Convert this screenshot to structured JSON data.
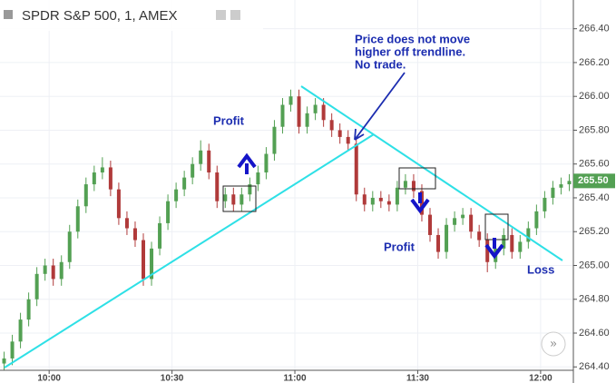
{
  "header": {
    "title": "SPDR S&P 500, 1, AMEX"
  },
  "chart_data": {
    "type": "candlestick",
    "x": [
      "9:49",
      "9:51",
      "9:53",
      "9:55",
      "9:57",
      "9:59",
      "10:01",
      "10:03",
      "10:05",
      "10:07",
      "10:09",
      "10:11",
      "10:13",
      "10:15",
      "10:17",
      "10:19",
      "10:21",
      "10:23",
      "10:25",
      "10:27",
      "10:29",
      "10:31",
      "10:33",
      "10:35",
      "10:37",
      "10:39",
      "10:41",
      "10:43",
      "10:45",
      "10:47",
      "10:49",
      "10:51",
      "10:53",
      "10:55",
      "10:57",
      "10:59",
      "11:01",
      "11:03",
      "11:05",
      "11:07",
      "11:09",
      "11:11",
      "11:13",
      "11:15",
      "11:17",
      "11:19",
      "11:21",
      "11:23",
      "11:25",
      "11:27",
      "11:29",
      "11:31",
      "11:33",
      "11:35",
      "11:37",
      "11:39",
      "11:41",
      "11:43",
      "11:45",
      "11:47",
      "11:49",
      "11:51",
      "11:53",
      "11:55",
      "11:57",
      "11:59",
      "12:01",
      "12:03",
      "12:05",
      "12:07"
    ],
    "open": [
      264.42,
      264.45,
      264.55,
      264.68,
      264.8,
      264.95,
      265.0,
      264.92,
      265.02,
      265.2,
      265.35,
      265.48,
      265.55,
      265.58,
      265.45,
      265.28,
      265.22,
      265.15,
      264.92,
      265.1,
      265.25,
      265.38,
      265.45,
      265.52,
      265.6,
      265.68,
      265.55,
      265.38,
      265.42,
      265.36,
      265.42,
      265.48,
      265.55,
      265.66,
      265.82,
      265.95,
      266.0,
      265.82,
      265.9,
      265.95,
      265.86,
      265.8,
      265.76,
      265.72,
      265.42,
      265.36,
      265.4,
      265.38,
      265.36,
      265.46,
      265.5,
      265.44,
      265.3,
      265.18,
      265.08,
      265.24,
      265.28,
      265.3,
      265.2,
      265.15,
      265.02,
      265.1,
      265.18,
      265.08,
      265.14,
      265.22,
      265.32,
      265.4,
      265.46,
      265.48
    ],
    "high": [
      264.49,
      264.59,
      264.72,
      264.84,
      264.99,
      265.04,
      265.04,
      265.06,
      265.24,
      265.39,
      265.52,
      265.59,
      265.64,
      265.62,
      265.49,
      265.32,
      265.26,
      265.19,
      265.14,
      265.29,
      265.42,
      265.49,
      265.56,
      265.64,
      265.74,
      265.72,
      265.59,
      265.46,
      265.46,
      265.46,
      265.52,
      265.59,
      265.7,
      265.86,
      265.99,
      266.04,
      266.04,
      265.94,
      265.99,
      265.99,
      265.9,
      265.84,
      265.8,
      265.76,
      265.46,
      265.44,
      265.44,
      265.42,
      265.5,
      265.54,
      265.54,
      265.48,
      265.34,
      265.22,
      265.28,
      265.32,
      265.34,
      265.34,
      265.24,
      265.19,
      265.14,
      265.22,
      265.22,
      265.18,
      265.26,
      265.36,
      265.44,
      265.5,
      265.52,
      265.54
    ],
    "low": [
      264.38,
      264.41,
      264.51,
      264.64,
      264.76,
      264.91,
      264.88,
      264.88,
      264.98,
      265.16,
      265.31,
      265.44,
      265.51,
      265.41,
      265.24,
      265.18,
      265.11,
      264.88,
      264.88,
      265.06,
      265.21,
      265.34,
      265.41,
      265.48,
      265.56,
      265.51,
      265.34,
      265.34,
      265.32,
      265.32,
      265.38,
      265.44,
      265.51,
      265.62,
      265.78,
      265.91,
      265.78,
      265.78,
      265.86,
      265.82,
      265.76,
      265.72,
      265.68,
      265.38,
      265.32,
      265.32,
      265.34,
      265.32,
      265.32,
      265.42,
      265.4,
      265.26,
      265.14,
      265.04,
      265.04,
      265.2,
      265.24,
      265.16,
      265.11,
      264.96,
      264.98,
      265.06,
      265.04,
      265.04,
      265.1,
      265.18,
      265.28,
      265.36,
      265.42,
      265.44
    ],
    "close": [
      264.45,
      264.55,
      264.68,
      264.8,
      264.95,
      265.0,
      264.92,
      265.02,
      265.2,
      265.35,
      265.48,
      265.55,
      265.58,
      265.45,
      265.28,
      265.22,
      265.15,
      264.92,
      265.1,
      265.25,
      265.38,
      265.45,
      265.52,
      265.6,
      265.68,
      265.55,
      265.38,
      265.42,
      265.36,
      265.42,
      265.48,
      265.55,
      265.66,
      265.82,
      265.95,
      266.0,
      265.82,
      265.9,
      265.95,
      265.86,
      265.8,
      265.76,
      265.72,
      265.42,
      265.36,
      265.4,
      265.38,
      265.36,
      265.46,
      265.5,
      265.44,
      265.3,
      265.18,
      265.08,
      265.24,
      265.28,
      265.3,
      265.2,
      265.15,
      265.02,
      265.1,
      265.18,
      265.08,
      265.14,
      265.22,
      265.32,
      265.4,
      265.46,
      265.48,
      265.5
    ],
    "up_color": "#53a053",
    "down_color": "#b03a3a",
    "xlim": [
      "9:48",
      "12:08"
    ],
    "xticks": [
      "10:00",
      "10:30",
      "11:00",
      "11:30",
      "12:00"
    ],
    "ylim": [
      264.38,
      266.57
    ],
    "yticks": [
      {
        "value": 264.4,
        "label": "264.40"
      },
      {
        "value": 264.6,
        "label": "264.60"
      },
      {
        "value": 264.8,
        "label": "264.80"
      },
      {
        "value": 265.0,
        "label": "265.00"
      },
      {
        "value": 265.2,
        "label": "265.20"
      },
      {
        "value": 265.4,
        "label": "265.40"
      },
      {
        "value": 265.6,
        "label": "265.60"
      },
      {
        "value": 265.8,
        "label": "265.80"
      },
      {
        "value": 266.0,
        "label": "266.00"
      },
      {
        "value": 266.2,
        "label": "266.20"
      },
      {
        "value": 266.4,
        "label": "266.40"
      }
    ],
    "last_price": {
      "value": 265.5,
      "label": "265.50"
    },
    "grid": true,
    "annotations": {
      "profit_1": "Profit",
      "profit_2": "Profit",
      "loss": "Loss",
      "note": [
        "Price does not move",
        "higher off trendline.",
        "No trade."
      ]
    }
  }
}
